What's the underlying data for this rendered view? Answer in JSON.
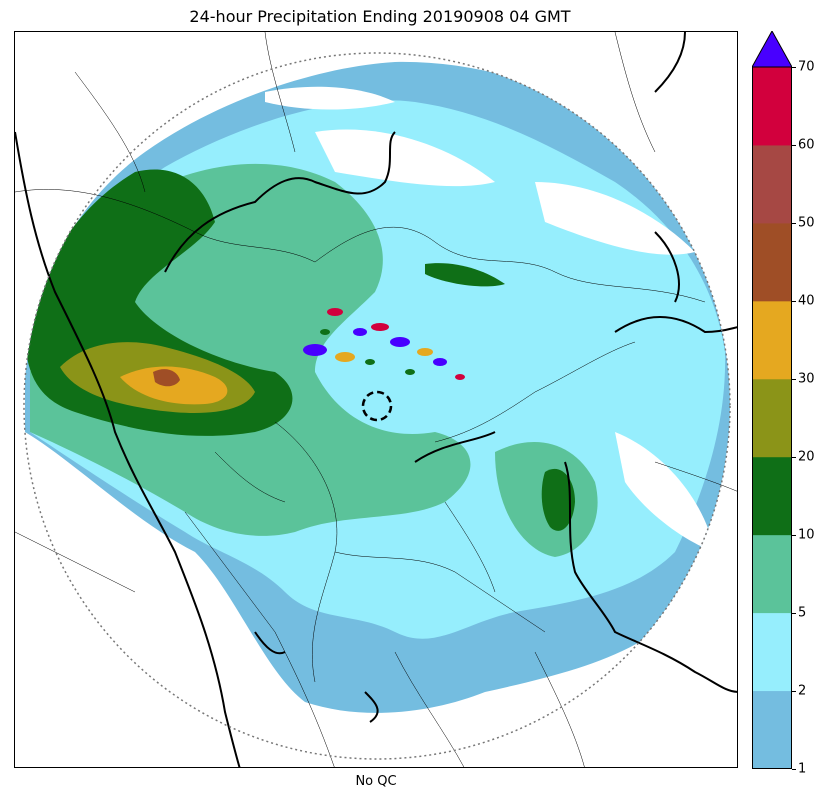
{
  "title": "24-hour Precipitation Ending 20190908 04 GMT",
  "xlabel": "No QC",
  "colorbar": {
    "levels": [
      1,
      2,
      5,
      10,
      20,
      30,
      40,
      50,
      60,
      70
    ],
    "tick_labels": [
      "1",
      "2",
      "5",
      "10",
      "20",
      "30",
      "40",
      "50",
      "60",
      "70"
    ],
    "colors": [
      "#74bde0",
      "#96eefd",
      "#5bc39a",
      "#0f6f17",
      "#8b9418",
      "#e5a820",
      "#9f4e26",
      "#a64844",
      "#d2003d"
    ],
    "over_color": "#4800ff",
    "extend": "max"
  },
  "map": {
    "radar_range_ring": "dotted",
    "radar_site_marker": "dashed-circle",
    "background": "#ffffff"
  }
}
